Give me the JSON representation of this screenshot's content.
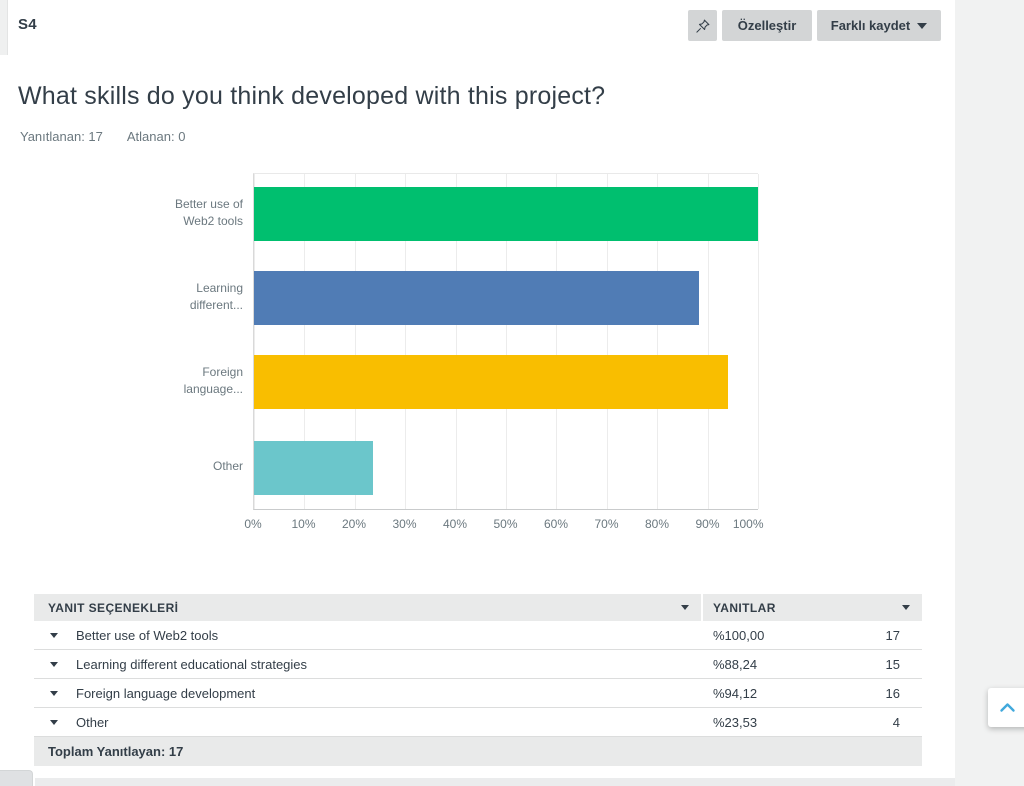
{
  "header": {
    "question_number": "S4",
    "customize_label": "Özelleştir",
    "save_as_label": "Farklı kaydet"
  },
  "question": {
    "title": "What skills do you think developed with this project?",
    "answered": "Yanıtlanan: 17",
    "skipped": "Atlanan: 0"
  },
  "chart_data": {
    "type": "bar",
    "orientation": "horizontal",
    "title": "",
    "categories": [
      "Better use of Web2 tools",
      "Learning different educational strategies",
      "Foreign language development",
      "Other"
    ],
    "values": [
      100.0,
      88.24,
      94.12,
      23.53
    ],
    "counts": [
      17,
      15,
      16,
      4
    ],
    "colors": [
      "#00BF6F",
      "#507CB5",
      "#F9BE00",
      "#6BC6CB"
    ],
    "bar_labels": [
      {
        "line1": "Better use of",
        "line2": "Web2 tools"
      },
      {
        "line1": "Learning",
        "line2": "different..."
      },
      {
        "line1": "Foreign",
        "line2": "language..."
      },
      {
        "line1": "Other",
        "line2": ""
      }
    ],
    "x_ticks": [
      "0%",
      "10%",
      "20%",
      "30%",
      "40%",
      "50%",
      "60%",
      "70%",
      "80%",
      "90%",
      "100%"
    ],
    "xlim": [
      0,
      100
    ],
    "grid": true,
    "legend": "none"
  },
  "table": {
    "columns": [
      "YANIT SEÇENEKLERİ",
      "YANITLAR"
    ],
    "rows": [
      {
        "label": "Better use of Web2 tools",
        "percent": "%100,00",
        "count": "17"
      },
      {
        "label": "Learning different educational strategies",
        "percent": "%88,24",
        "count": "15"
      },
      {
        "label": "Foreign language development",
        "percent": "%94,12",
        "count": "16"
      },
      {
        "label": "Other",
        "percent": "%23,53",
        "count": "4"
      }
    ],
    "footer": "Toplam Yanıtlayan: 17"
  },
  "colors": {
    "text_dark": "#333E48",
    "text_muted": "#6B787F",
    "button_gray": "#d3d5d6",
    "header_row_bg": "#e9eaea",
    "scroll_chevron_blue": "#41A9DC"
  }
}
